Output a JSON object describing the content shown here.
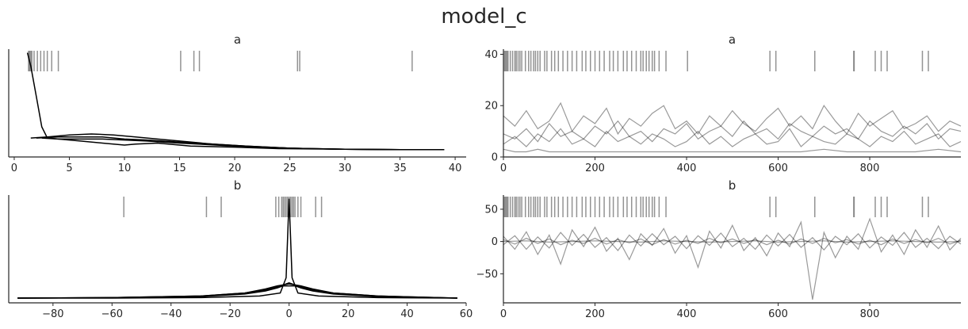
{
  "suptitle": "model_c",
  "colors": {
    "kde_line": "#000000",
    "trace_line": "#000000",
    "rug": "#808080",
    "axis": "#262626"
  },
  "chart_data": [
    {
      "type": "line",
      "panel": "kde",
      "variable": "a",
      "title": "a",
      "xlim": [
        -0.5,
        41
      ],
      "x_ticks": [
        0,
        5,
        10,
        15,
        20,
        25,
        30,
        35,
        40
      ],
      "x_tick_labels": [
        "0",
        "5",
        "10",
        "15",
        "20",
        "25",
        "30",
        "35",
        "40"
      ],
      "series": [
        {
          "x": [
            1.2,
            1.5,
            2,
            2.5,
            3,
            4,
            6,
            8,
            10,
            12,
            15,
            20,
            25,
            30,
            35,
            39
          ],
          "y": [
            0.98,
            0.85,
            0.55,
            0.25,
            0.14,
            0.13,
            0.13,
            0.13,
            0.12,
            0.11,
            0.09,
            0.06,
            0.04,
            0.03,
            0.025,
            0.025
          ]
        },
        {
          "x": [
            1.5,
            3,
            5,
            7,
            9,
            11,
            13,
            15,
            18,
            21,
            25,
            30,
            35,
            39
          ],
          "y": [
            0.14,
            0.15,
            0.17,
            0.18,
            0.17,
            0.15,
            0.13,
            0.11,
            0.08,
            0.06,
            0.04,
            0.03,
            0.025,
            0.025
          ]
        },
        {
          "x": [
            2,
            4,
            6,
            8,
            10,
            12,
            15,
            18,
            21,
            25,
            30,
            35,
            39
          ],
          "y": [
            0.14,
            0.15,
            0.15,
            0.15,
            0.13,
            0.12,
            0.1,
            0.08,
            0.06,
            0.04,
            0.03,
            0.025,
            0.025
          ]
        },
        {
          "x": [
            2.5,
            4,
            6,
            8,
            10,
            11,
            13,
            16,
            20,
            24,
            30,
            35,
            39
          ],
          "y": [
            0.14,
            0.13,
            0.11,
            0.09,
            0.07,
            0.08,
            0.09,
            0.06,
            0.05,
            0.035,
            0.03,
            0.025,
            0.025
          ]
        }
      ],
      "rug": [
        1.3,
        1.35,
        1.4,
        1.5,
        1.6,
        1.8,
        2.1,
        2.4,
        2.7,
        3.0,
        3.4,
        4.0,
        15.1,
        16.3,
        16.8,
        25.7,
        25.9,
        36.1
      ]
    },
    {
      "type": "line",
      "panel": "trace",
      "variable": "a",
      "title": "a",
      "xlim": [
        0,
        999
      ],
      "ylim": [
        0,
        42
      ],
      "x_ticks": [
        0,
        200,
        400,
        600,
        800
      ],
      "x_tick_labels": [
        "0",
        "200",
        "400",
        "600",
        "800"
      ],
      "y_ticks": [
        0,
        20,
        40
      ],
      "y_tick_labels": [
        "0",
        "20",
        "40"
      ],
      "series": [
        {
          "x": [
            0,
            25,
            50,
            75,
            100,
            125,
            150,
            175,
            200,
            225,
            250,
            275,
            300,
            325,
            350,
            375,
            400,
            425,
            450,
            475,
            500,
            525,
            550,
            575,
            600,
            625,
            650,
            675,
            700,
            725,
            750,
            775,
            800,
            825,
            850,
            875,
            900,
            925,
            950,
            975,
            999
          ],
          "y": [
            16,
            12,
            18,
            11,
            14,
            21,
            10,
            16,
            13,
            19,
            9,
            15,
            12,
            17,
            20,
            11,
            14,
            9,
            16,
            12,
            18,
            13,
            10,
            15,
            19,
            12,
            16,
            11,
            20,
            14,
            9,
            17,
            12,
            15,
            18,
            11,
            13,
            16,
            10,
            14,
            12
          ]
        },
        {
          "x": [
            0,
            25,
            50,
            75,
            100,
            125,
            150,
            175,
            200,
            225,
            250,
            275,
            300,
            325,
            350,
            375,
            400,
            425,
            450,
            475,
            500,
            525,
            550,
            575,
            600,
            625,
            650,
            675,
            700,
            725,
            750,
            775,
            800,
            825,
            850,
            875,
            900,
            925,
            950,
            975,
            999
          ],
          "y": [
            9,
            7,
            11,
            6,
            13,
            8,
            10,
            7,
            12,
            9,
            14,
            8,
            10,
            6,
            11,
            9,
            13,
            7,
            10,
            12,
            8,
            14,
            9,
            11,
            7,
            13,
            10,
            8,
            12,
            9,
            11,
            7,
            14,
            10,
            8,
            12,
            9,
            13,
            7,
            11,
            10
          ]
        },
        {
          "x": [
            0,
            25,
            50,
            75,
            100,
            125,
            150,
            175,
            200,
            225,
            250,
            275,
            300,
            325,
            350,
            375,
            400,
            425,
            450,
            475,
            500,
            525,
            550,
            575,
            600,
            625,
            650,
            675,
            700,
            725,
            750,
            775,
            800,
            825,
            850,
            875,
            900,
            925,
            950,
            975,
            999
          ],
          "y": [
            5,
            8,
            4,
            9,
            6,
            11,
            5,
            7,
            4,
            10,
            6,
            8,
            5,
            9,
            7,
            4,
            6,
            10,
            5,
            8,
            4,
            7,
            9,
            5,
            6,
            11,
            4,
            8,
            6,
            5,
            9,
            7,
            4,
            8,
            6,
            10,
            5,
            7,
            9,
            4,
            6
          ]
        },
        {
          "x": [
            0,
            25,
            50,
            75,
            100,
            150,
            200,
            250,
            300,
            350,
            400,
            450,
            500,
            550,
            600,
            650,
            700,
            750,
            800,
            850,
            900,
            950,
            999
          ],
          "y": [
            3,
            2,
            2,
            3,
            2,
            2,
            2,
            2,
            2,
            2,
            2,
            2,
            2,
            2,
            2,
            2,
            3,
            2,
            2,
            2,
            2,
            3,
            2
          ]
        }
      ],
      "rug": [
        2,
        4,
        6,
        8,
        10,
        15,
        20,
        25,
        28,
        32,
        36,
        40,
        48,
        55,
        60,
        66,
        70,
        75,
        80,
        90,
        95,
        105,
        112,
        120,
        130,
        140,
        150,
        160,
        172,
        180,
        190,
        200,
        210,
        220,
        232,
        240,
        250,
        262,
        270,
        280,
        290,
        300,
        305,
        312,
        318,
        325,
        330,
        340,
        355,
        402,
        582,
        595,
        680,
        765,
        766,
        812,
        825,
        838,
        915,
        928
      ]
    },
    {
      "type": "line",
      "panel": "kde",
      "variable": "b",
      "title": "b",
      "xlim": [
        -95,
        60
      ],
      "x_ticks": [
        -80,
        -60,
        -40,
        -20,
        0,
        20,
        40,
        60
      ],
      "x_tick_labels": [
        "−80",
        "−60",
        "−40",
        "−20",
        "0",
        "20",
        "40",
        "60"
      ],
      "series": [
        {
          "x": [
            -92,
            -60,
            -30,
            -10,
            -3,
            -1,
            -0.5,
            0,
            0.5,
            1,
            3,
            10,
            30,
            57
          ],
          "y": [
            0.0,
            0.0,
            0.005,
            0.02,
            0.05,
            0.2,
            0.6,
            0.98,
            0.6,
            0.2,
            0.05,
            0.02,
            0.005,
            0.0
          ]
        },
        {
          "x": [
            -92,
            -60,
            -30,
            -15,
            -8,
            -4,
            -2,
            0,
            2,
            4,
            8,
            15,
            30,
            57
          ],
          "y": [
            0.0,
            0.005,
            0.02,
            0.05,
            0.09,
            0.12,
            0.13,
            0.14,
            0.13,
            0.12,
            0.09,
            0.05,
            0.02,
            0.0
          ]
        },
        {
          "x": [
            -92,
            -60,
            -30,
            -15,
            -8,
            -4,
            -2,
            0,
            2,
            4,
            8,
            15,
            30,
            57
          ],
          "y": [
            0.0,
            0.005,
            0.02,
            0.05,
            0.08,
            0.11,
            0.13,
            0.15,
            0.13,
            0.11,
            0.08,
            0.05,
            0.02,
            0.0
          ]
        },
        {
          "x": [
            -92,
            -60,
            -30,
            -15,
            -8,
            -4,
            -2,
            0,
            2,
            4,
            8,
            15,
            30,
            57
          ],
          "y": [
            0.0,
            0.005,
            0.015,
            0.04,
            0.07,
            0.1,
            0.12,
            0.12,
            0.12,
            0.1,
            0.07,
            0.04,
            0.015,
            0.0
          ]
        }
      ],
      "rug": [
        -56,
        -28,
        -23,
        -4.5,
        -3.5,
        -2.5,
        -2,
        -1.5,
        -1,
        -0.5,
        0,
        0.5,
        1,
        1.5,
        2,
        3,
        4,
        9,
        11
      ]
    },
    {
      "type": "line",
      "panel": "trace",
      "variable": "b",
      "title": "b",
      "xlim": [
        0,
        999
      ],
      "ylim": [
        -95,
        72
      ],
      "x_ticks": [
        0,
        200,
        400,
        600,
        800
      ],
      "x_tick_labels": [
        "0",
        "200",
        "400",
        "600",
        "800"
      ],
      "y_ticks": [
        -50,
        0,
        50
      ],
      "y_tick_labels": [
        "−50",
        "0",
        "50"
      ],
      "series": [
        {
          "x": [
            0,
            25,
            50,
            75,
            100,
            125,
            150,
            175,
            200,
            225,
            250,
            275,
            300,
            325,
            350,
            375,
            400,
            425,
            450,
            475,
            500,
            525,
            550,
            575,
            600,
            625,
            650,
            675,
            700,
            725,
            750,
            775,
            800,
            825,
            850,
            875,
            900,
            925,
            950,
            975,
            999
          ],
          "y": [
            8,
            -12,
            15,
            -20,
            10,
            -35,
            18,
            -8,
            22,
            -15,
            5,
            -28,
            12,
            -6,
            20,
            -18,
            9,
            -40,
            16,
            -10,
            25,
            -14,
            6,
            -22,
            13,
            -8,
            30,
            -90,
            14,
            -25,
            8,
            -12,
            35,
            -16,
            10,
            -20,
            18,
            -9,
            24,
            -13,
            5
          ]
        },
        {
          "x": [
            0,
            25,
            50,
            75,
            100,
            125,
            150,
            175,
            200,
            225,
            250,
            275,
            300,
            325,
            350,
            375,
            400,
            425,
            450,
            475,
            500,
            525,
            550,
            575,
            600,
            625,
            650,
            675,
            700,
            725,
            750,
            775,
            800,
            825,
            850,
            875,
            900,
            925,
            950,
            975,
            999
          ],
          "y": [
            -5,
            9,
            -12,
            7,
            -10,
            14,
            -6,
            11,
            -9,
            6,
            -14,
            10,
            -7,
            12,
            -5,
            8,
            -11,
            9,
            -6,
            13,
            -8,
            5,
            -12,
            10,
            -7,
            11,
            -9,
            6,
            -13,
            8,
            -5,
            12,
            -10,
            7,
            -6,
            14,
            -9,
            5,
            -11,
            8,
            -4
          ]
        },
        {
          "x": [
            0,
            25,
            50,
            75,
            100,
            125,
            150,
            175,
            200,
            225,
            250,
            275,
            300,
            325,
            350,
            375,
            400,
            425,
            450,
            475,
            500,
            525,
            550,
            575,
            600,
            625,
            650,
            675,
            700,
            725,
            750,
            775,
            800,
            825,
            850,
            875,
            900,
            925,
            950,
            975,
            999
          ],
          "y": [
            3,
            -4,
            5,
            -3,
            4,
            -5,
            2,
            -3,
            5,
            -4,
            3,
            -2,
            4,
            -5,
            3,
            -4,
            2,
            -3,
            5,
            -2,
            4,
            -3,
            3,
            -5,
            2,
            -4,
            4,
            -3,
            5,
            -2,
            3,
            -4,
            2,
            -5,
            4,
            -3,
            3,
            -2,
            5,
            -4,
            2
          ]
        },
        {
          "x": [
            0,
            50,
            100,
            150,
            200,
            250,
            300,
            350,
            400,
            450,
            500,
            550,
            600,
            650,
            700,
            750,
            800,
            850,
            900,
            950,
            999
          ],
          "y": [
            0,
            1,
            -1,
            0,
            1,
            0,
            -1,
            1,
            0,
            -1,
            0,
            1,
            -1,
            0,
            1,
            -1,
            0,
            1,
            0,
            -1,
            0
          ]
        }
      ],
      "rug": [
        2,
        4,
        6,
        8,
        10,
        15,
        20,
        25,
        28,
        32,
        36,
        40,
        48,
        55,
        60,
        66,
        70,
        75,
        80,
        90,
        95,
        105,
        112,
        120,
        130,
        140,
        150,
        160,
        172,
        180,
        190,
        200,
        210,
        220,
        232,
        240,
        250,
        262,
        270,
        280,
        290,
        300,
        305,
        312,
        318,
        325,
        330,
        340,
        355,
        582,
        595,
        680,
        765,
        766,
        812,
        825,
        838,
        915,
        928
      ]
    }
  ]
}
